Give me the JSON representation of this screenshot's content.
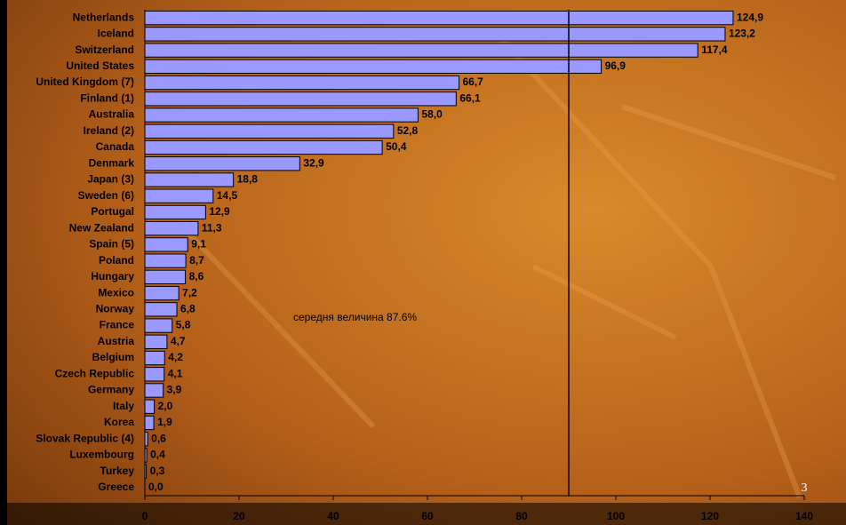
{
  "chart_data": {
    "type": "bar",
    "orientation": "horizontal",
    "categories": [
      "Netherlands",
      "Iceland",
      "Switzerland",
      "United States",
      "United Kingdom (7)",
      "Finland (1)",
      "Australia",
      "Ireland (2)",
      "Canada",
      "Denmark",
      "Japan (3)",
      "Sweden (6)",
      "Portugal",
      "New Zealand",
      "Spain (5)",
      "Poland",
      "Hungary",
      "Mexico",
      "Norway",
      "France",
      "Austria",
      "Belgium",
      "Czech Republic",
      "Germany",
      "Italy",
      "Korea",
      "Slovak Republic (4)",
      "Luxembourg",
      "Turkey",
      "Greece"
    ],
    "values": [
      124.9,
      123.2,
      117.4,
      96.9,
      66.7,
      66.1,
      58.0,
      52.8,
      50.4,
      32.9,
      18.8,
      14.5,
      12.9,
      11.3,
      9.1,
      8.7,
      8.6,
      7.2,
      6.8,
      5.8,
      4.7,
      4.2,
      4.1,
      3.9,
      2.0,
      1.9,
      0.6,
      0.4,
      0.3,
      0.0
    ],
    "value_labels": [
      "124,9",
      "123,2",
      "117,4",
      "96,9",
      "66,7",
      "66,1",
      "58,0",
      "52,8",
      "50,4",
      "32,9",
      "18,8",
      "14,5",
      "12,9",
      "11,3",
      "9,1",
      "8,7",
      "8,6",
      "7,2",
      "6,8",
      "5,8",
      "4,7",
      "4,2",
      "4,1",
      "3,9",
      "2,0",
      "1,9",
      "0,6",
      "0,4",
      "0,3",
      "0,0"
    ],
    "color": "#9999ff",
    "xlim": [
      0,
      140
    ],
    "xticks": [
      0,
      20,
      40,
      60,
      80,
      100,
      120,
      140
    ],
    "reference_line": 90,
    "annotation": "середня величина 87.6%"
  },
  "page_number": "3"
}
